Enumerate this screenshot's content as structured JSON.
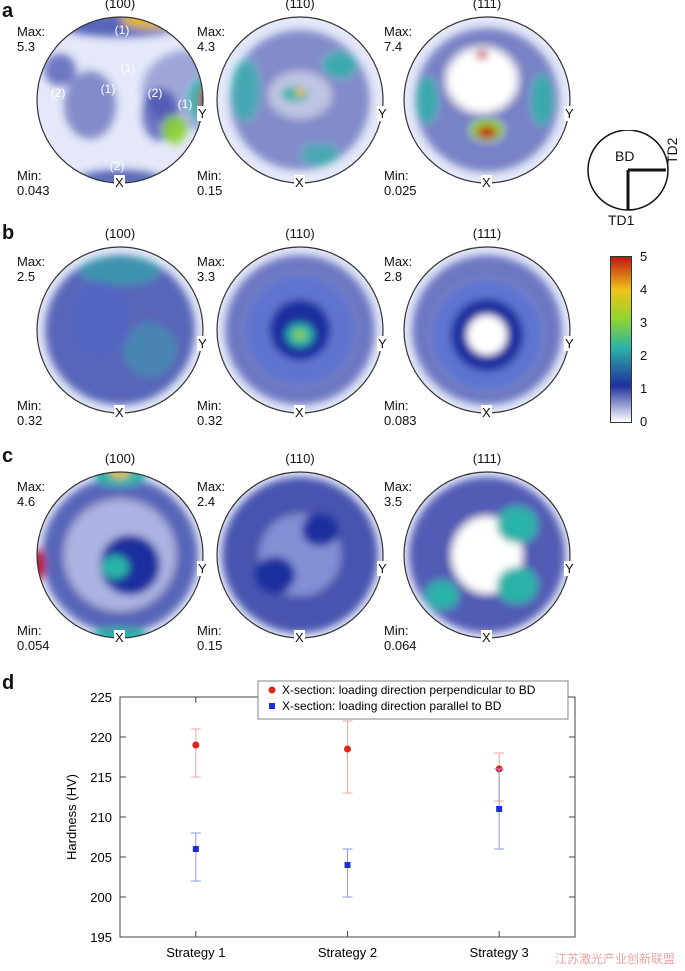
{
  "panels": [
    {
      "letter": "a",
      "figures": [
        {
          "title": "(100)",
          "max_label": "Max:",
          "max_value": "5.3",
          "min_label": "Min:",
          "min_value": "0.043",
          "x_label": "X",
          "y_label": "Y",
          "annotations": [
            "(1)",
            "(1)",
            "(1)",
            "(1)",
            "(2)",
            "(2)",
            "(2)"
          ]
        },
        {
          "title": "(110)",
          "max_label": "Max:",
          "max_value": "4.3",
          "min_label": "Min:",
          "min_value": "0.15",
          "x_label": "X",
          "y_label": "Y"
        },
        {
          "title": "(111)",
          "max_label": "Max:",
          "max_value": "7.4",
          "min_label": "Min:",
          "min_value": "0.025",
          "x_label": "X",
          "y_label": "Y"
        }
      ]
    },
    {
      "letter": "b",
      "figures": [
        {
          "title": "(100)",
          "max_label": "Max:",
          "max_value": "2.5",
          "min_label": "Min:",
          "min_value": "0.32",
          "x_label": "X",
          "y_label": "Y"
        },
        {
          "title": "(110)",
          "max_label": "Max:",
          "max_value": "3.3",
          "min_label": "Min:",
          "min_value": "0.32",
          "x_label": "X",
          "y_label": "Y"
        },
        {
          "title": "(111)",
          "max_label": "Max:",
          "max_value": "2.8",
          "min_label": "Min:",
          "min_value": "0.083",
          "x_label": "X",
          "y_label": "Y"
        }
      ]
    },
    {
      "letter": "c",
      "figures": [
        {
          "title": "(100)",
          "max_label": "Max:",
          "max_value": "4.6",
          "min_label": "Min:",
          "min_value": "0.054",
          "x_label": "X",
          "y_label": "Y"
        },
        {
          "title": "(110)",
          "max_label": "Max:",
          "max_value": "2.4",
          "min_label": "Min:",
          "min_value": "0.15",
          "x_label": "X",
          "y_label": "Y"
        },
        {
          "title": "(111)",
          "max_label": "Max:",
          "max_value": "3.5",
          "min_label": "Min:",
          "min_value": "0.064",
          "x_label": "X",
          "y_label": "Y"
        }
      ]
    }
  ],
  "orientation_key": {
    "bd": "BD",
    "td1": "TD1",
    "td2": "TD2"
  },
  "colorbar": {
    "ticks": [
      "5",
      "4",
      "3",
      "2",
      "1",
      "0"
    ],
    "colors": [
      "#ffffff",
      "#1f2f9e",
      "#2bb3a8",
      "#8ed431",
      "#f0c21b",
      "#c0160f"
    ]
  },
  "hardness_panel_letter": "d",
  "chart_data": {
    "type": "scatter",
    "categories": [
      "Strategy 1",
      "Strategy 2",
      "Strategy 3"
    ],
    "ylabel": "Hardness (HV)",
    "ylim": [
      195,
      225
    ],
    "yticks": [
      "195",
      "200",
      "205",
      "210",
      "215",
      "220",
      "225"
    ],
    "grid": false,
    "legend_position": "top-right",
    "series": [
      {
        "name": "X-section: loading direction perpendicular to BD",
        "color": "#e0241b",
        "err_color": "#e8a7a0",
        "values": [
          219,
          218.5,
          216
        ],
        "err_low": [
          215,
          213,
          212
        ],
        "err_high": [
          221,
          222,
          218
        ]
      },
      {
        "name": "X-section: loading direction parallel to BD",
        "color": "#1a2fd6",
        "err_color": "#8f97e8",
        "values": [
          206,
          204,
          211
        ],
        "err_low": [
          202,
          200,
          206
        ],
        "err_high": [
          208,
          206,
          216
        ]
      }
    ]
  },
  "watermark": "江苏激光产业创新联盟"
}
